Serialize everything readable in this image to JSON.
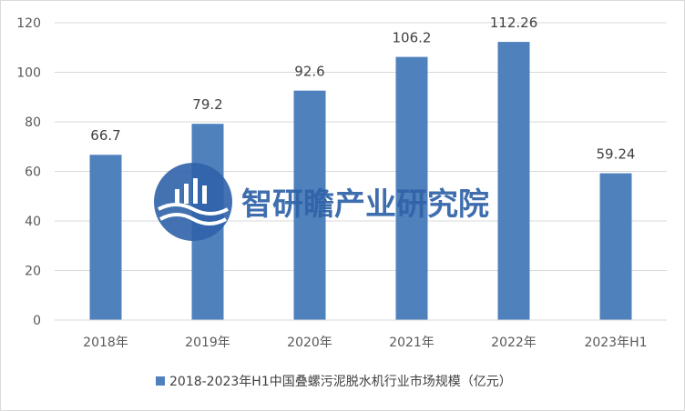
{
  "chart_data": {
    "type": "bar",
    "categories": [
      "2018年",
      "2019年",
      "2020年",
      "2021年",
      "2022年",
      "2023年H1"
    ],
    "series": [
      {
        "name": "2018-2023年H1中国叠螺污泥脱水机行业市场规模（亿元）",
        "values": [
          66.7,
          79.2,
          92.6,
          106.2,
          112.26,
          59.24
        ],
        "value_labels": [
          "66.7",
          "79.2",
          "92.6",
          "106.2",
          "112.26",
          "59.24"
        ]
      }
    ],
    "yticks": [
      "0",
      "20",
      "40",
      "60",
      "80",
      "100",
      "120"
    ],
    "ylim": [
      0,
      120
    ],
    "grid": true,
    "legend": "bottom",
    "bar_color": "#4f81bd"
  },
  "watermark": {
    "text": "智研瞻产业研究院",
    "logo": "智研瞻-logo-icon",
    "color": "#2f62a8"
  }
}
